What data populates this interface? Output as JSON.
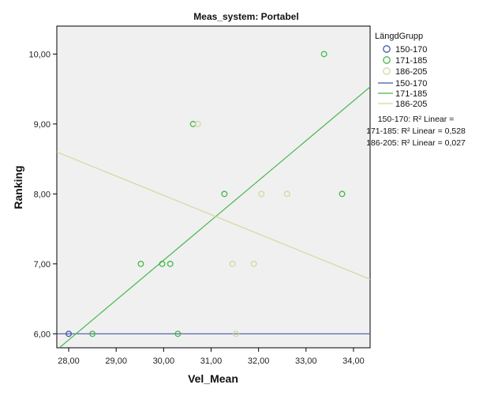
{
  "chart_data": {
    "type": "scatter",
    "title": "Meas_system: Portabel",
    "xlabel": "Vel_Mean",
    "ylabel": "Ranking",
    "xlim": [
      27.75,
      34.35
    ],
    "ylim": [
      5.8,
      10.4
    ],
    "xticks": [
      28,
      29,
      30,
      31,
      32,
      33,
      34
    ],
    "xtick_labels": [
      "28,00",
      "29,00",
      "30,00",
      "31,00",
      "32,00",
      "33,00",
      "34,00"
    ],
    "yticks": [
      6,
      7,
      8,
      9,
      10
    ],
    "ytick_labels": [
      "6,00",
      "7,00",
      "8,00",
      "9,00",
      "10,00"
    ],
    "background": "#f0f0f0",
    "legend": {
      "title": "LängdGrupp",
      "position": "right",
      "point_entries": [
        "150-170",
        "171-185",
        "186-205"
      ],
      "line_entries": [
        "150-170",
        "171-185",
        "186-205"
      ]
    },
    "series": [
      {
        "name": "150-170",
        "color": "#3e58ac",
        "points": [
          [
            28.0,
            6.0
          ]
        ],
        "fit_line": [
          [
            27.75,
            6.0
          ],
          [
            34.35,
            6.0
          ]
        ]
      },
      {
        "name": "171-185",
        "color": "#45b84a",
        "points": [
          [
            28.5,
            6.0
          ],
          [
            29.52,
            7.0
          ],
          [
            29.97,
            7.0
          ],
          [
            30.14,
            7.0
          ],
          [
            30.3,
            6.0
          ],
          [
            30.62,
            9.0
          ],
          [
            31.28,
            8.0
          ],
          [
            33.38,
            10.0
          ],
          [
            33.76,
            8.0
          ]
        ],
        "fit_line": [
          [
            27.75,
            5.77
          ],
          [
            34.35,
            9.53
          ]
        ]
      },
      {
        "name": "186-205",
        "color": "#d4d8a0",
        "points": [
          [
            30.72,
            9.0
          ],
          [
            31.45,
            7.0
          ],
          [
            31.52,
            6.0
          ],
          [
            31.9,
            7.0
          ],
          [
            32.06,
            8.0
          ],
          [
            32.6,
            8.0
          ]
        ],
        "fit_line": [
          [
            27.75,
            8.6
          ],
          [
            34.35,
            6.78
          ]
        ]
      }
    ],
    "r2": {
      "lines": [
        "150-170: R² Linear =",
        "171-185: R² Linear = 0,528",
        "186-205: R² Linear = 0,027"
      ]
    }
  }
}
